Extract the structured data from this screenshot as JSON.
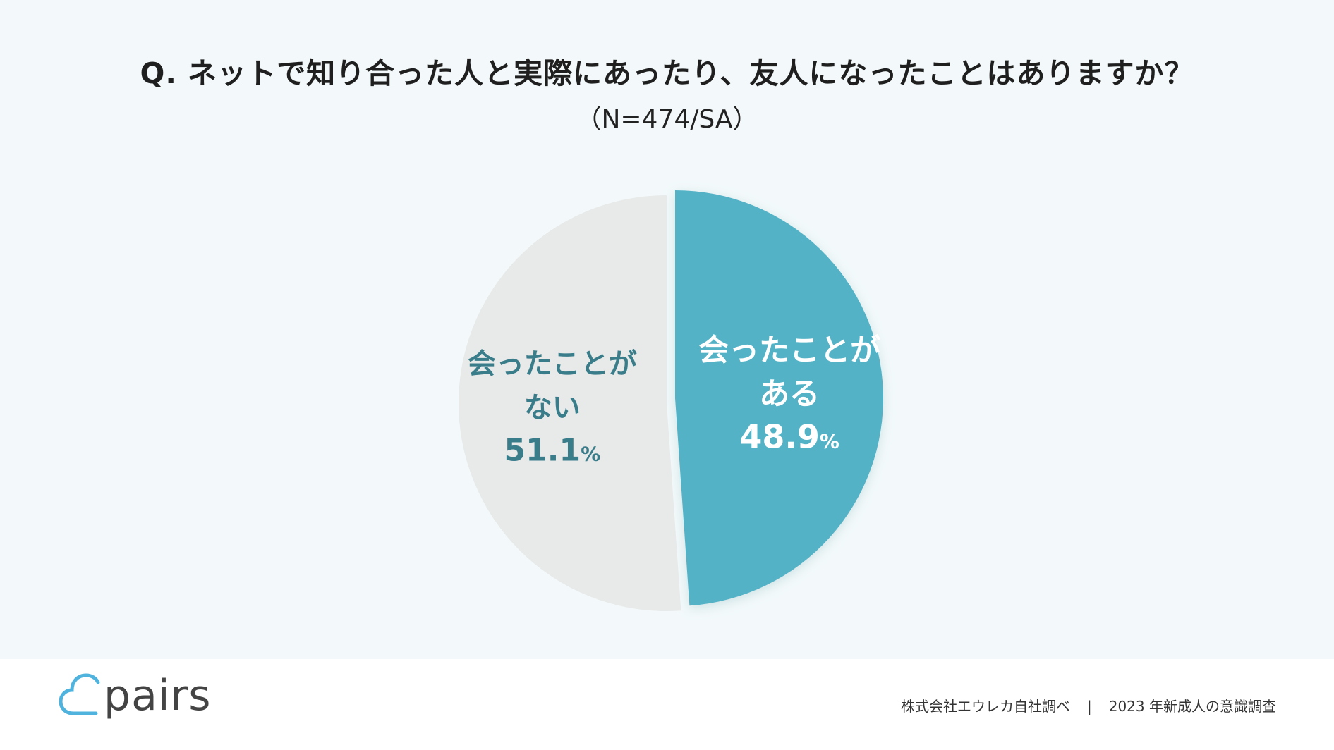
{
  "title": "Q. ネットで知り合った人と実際にあったり、友人になったことはありますか？",
  "subtitle": "（N=474/SA）",
  "chart_data": {
    "type": "pie",
    "title": "Q. ネットで知り合った人と実際にあったり、友人になったことはありますか？",
    "subtitle": "（N=474/SA）",
    "slices": [
      {
        "label_lines": [
          "会ったことが",
          "ある"
        ],
        "value": 48.9,
        "value_text": "48.9",
        "unit": "%",
        "color": "#52b2c6",
        "text_color": "#ffffff",
        "exploded": true
      },
      {
        "label_lines": [
          "会ったことが",
          "ない"
        ],
        "value": 51.1,
        "value_text": "51.1",
        "unit": "%",
        "color": "#e8e9e9",
        "text_color": "#3a7d8a",
        "exploded": false
      }
    ]
  },
  "footer": {
    "logo_text": "pairs",
    "source": "株式会社エウレカ自社調べ",
    "separator": "|",
    "survey": "2023 年新成人の意識調査"
  },
  "colors": {
    "background": "#f3f9fa",
    "accent": "#52b2c6",
    "logo": "#4fb3dd"
  }
}
